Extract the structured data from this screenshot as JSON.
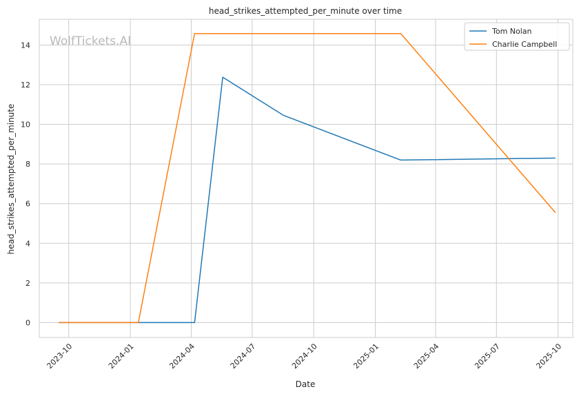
{
  "chart_data": {
    "type": "line",
    "title": "head_strikes_attempted_per_minute over time",
    "xlabel": "Date",
    "ylabel": "head_strikes_attempted_per_minute",
    "watermark": "WolfTickets.AI",
    "x_ticks": [
      "2023-10",
      "2024-01",
      "2024-04",
      "2024-07",
      "2024-10",
      "2025-01",
      "2025-04",
      "2025-07",
      "2025-10"
    ],
    "y_ticks": [
      0,
      2,
      4,
      6,
      8,
      10,
      12,
      14
    ],
    "xlim": [
      "2023-08-18",
      "2025-10-23"
    ],
    "ylim": [
      -0.75,
      15.3
    ],
    "grid": true,
    "legend_position": "top-right",
    "series": [
      {
        "name": "Tom Nolan",
        "color": "#1f77b4",
        "points": [
          {
            "x": "2023-09-16",
            "y": 0.0
          },
          {
            "x": "2024-01-13",
            "y": 0.0
          },
          {
            "x": "2024-04-06",
            "y": 0.0
          },
          {
            "x": "2024-05-18",
            "y": 12.38
          },
          {
            "x": "2024-08-17",
            "y": 10.45
          },
          {
            "x": "2025-02-08",
            "y": 8.2
          },
          {
            "x": "2025-09-27",
            "y": 8.3
          }
        ]
      },
      {
        "name": "Charlie Campbell",
        "color": "#ff7f0e",
        "points": [
          {
            "x": "2023-09-16",
            "y": 0.0
          },
          {
            "x": "2024-01-13",
            "y": 0.0
          },
          {
            "x": "2024-04-06",
            "y": 14.58
          },
          {
            "x": "2025-02-08",
            "y": 14.58
          },
          {
            "x": "2025-09-27",
            "y": 5.55
          }
        ]
      }
    ]
  }
}
